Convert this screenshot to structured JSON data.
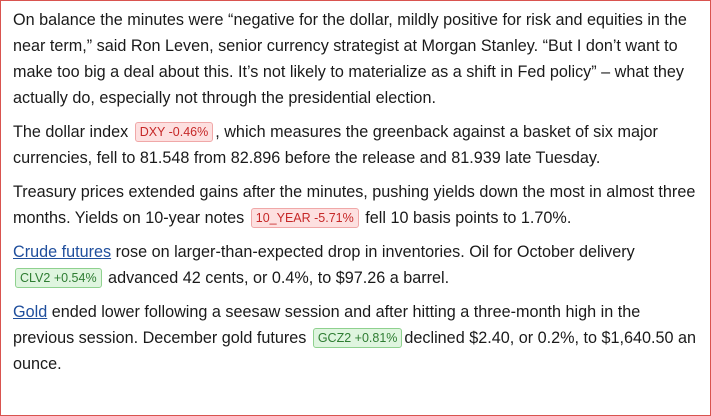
{
  "article": {
    "p1": {
      "text": "On balance the minutes were “negative for the dollar, mildly positive for risk and equities in the near term,” said Ron Leven, senior currency strategist at Morgan Stanley. “But I don’t want to make too big a deal about this. It’s not likely to materialize as a shift in Fed policy” – what they actually do, especially not through the presidential election."
    },
    "p2": {
      "before": "The dollar index ",
      "ticker": "DXY -0.46%",
      "after": ", which measures the greenback against a basket of six major currencies, fell to 81.548 from 82.896 before the release and 81.939 late Tuesday."
    },
    "p3": {
      "before": "Treasury prices extended gains after the minutes, pushing yields down the most in almost three months. Yields on 10-year notes ",
      "ticker": "10_YEAR -5.71%",
      "after": " fell 10 basis points to 1.70%."
    },
    "p4": {
      "link": "Crude futures",
      "before": " rose on larger-than-expected drop in inventories. Oil for October delivery ",
      "ticker": "CLV2 +0.54%",
      "after": " advanced 42 cents, or 0.4%, to $97.26 a barrel."
    },
    "p5": {
      "link": "Gold",
      "before": " ended lower following a seesaw session and  after hitting a three-month high in the previous session. December gold futures ",
      "ticker": "GCZ2 +0.81%",
      "after": "declined $2.40, or 0.2%, to $1,640.50 an ounce."
    }
  },
  "colors": {
    "negative_ticker": "#c62828",
    "positive_ticker": "#2e7d32",
    "link": "#1f4e9c",
    "frame_border": "#d9534f"
  }
}
